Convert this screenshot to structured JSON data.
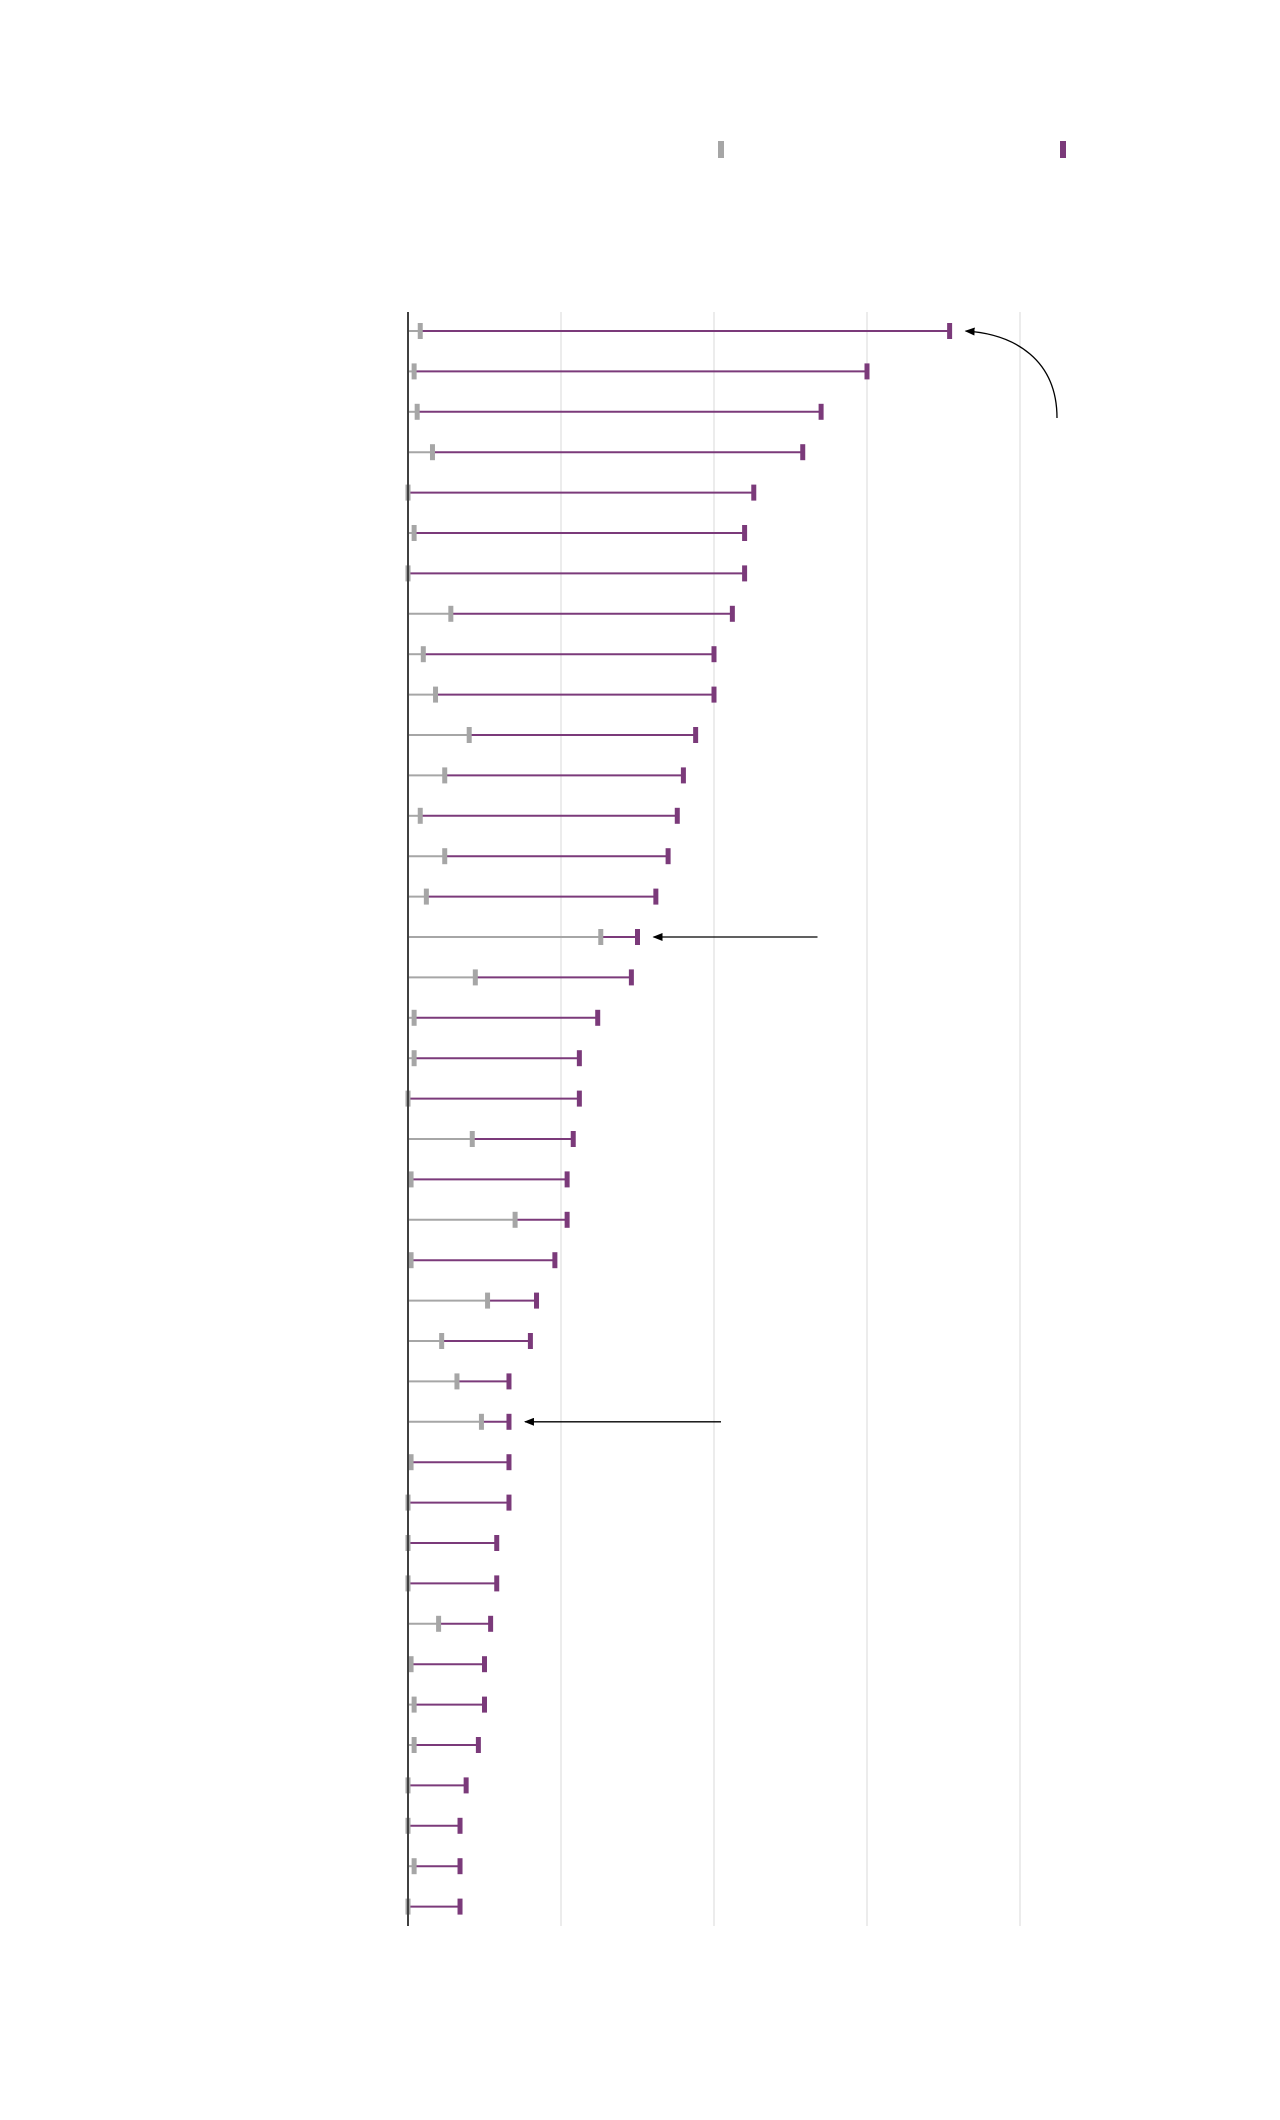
{
  "chart_data": {
    "type": "dumbbell",
    "orientation": "horizontal",
    "title": "",
    "xlabel": "",
    "ylabel": "",
    "xlim": [
      0,
      200
    ],
    "gridlines": [
      50,
      100,
      150,
      200
    ],
    "grid": true,
    "legend": {
      "placement": "top",
      "entries": [
        {
          "name": "",
          "color": "#a6a6a6"
        },
        {
          "name": "",
          "color": "#7b3a7a"
        }
      ]
    },
    "series": [
      {
        "name": "",
        "color": "#a6a6a6",
        "values": [
          4,
          2,
          3,
          8,
          0,
          2,
          0,
          14,
          5,
          9,
          20,
          12,
          4,
          12,
          6,
          63,
          22,
          2,
          2,
          0,
          21,
          1,
          35,
          1,
          26,
          11,
          16,
          24,
          1,
          0,
          0,
          0,
          10,
          1,
          2,
          2,
          0,
          0,
          2,
          0
        ]
      },
      {
        "name": "",
        "color": "#7b3a7a",
        "values": [
          177,
          150,
          135,
          129,
          113,
          110,
          110,
          106,
          100,
          100,
          94,
          90,
          88,
          85,
          81,
          75,
          73,
          62,
          56,
          56,
          54,
          52,
          52,
          48,
          42,
          40,
          33,
          33,
          33,
          33,
          29,
          29,
          27,
          25,
          25,
          23,
          19,
          17,
          17,
          17
        ]
      }
    ],
    "annotations": [
      {
        "kind": "curved-arrow",
        "points_to_row": 0,
        "text": ""
      },
      {
        "kind": "arrow",
        "points_to_row": 15,
        "text": ""
      },
      {
        "kind": "arrow",
        "points_to_row": 27,
        "text": ""
      }
    ]
  }
}
